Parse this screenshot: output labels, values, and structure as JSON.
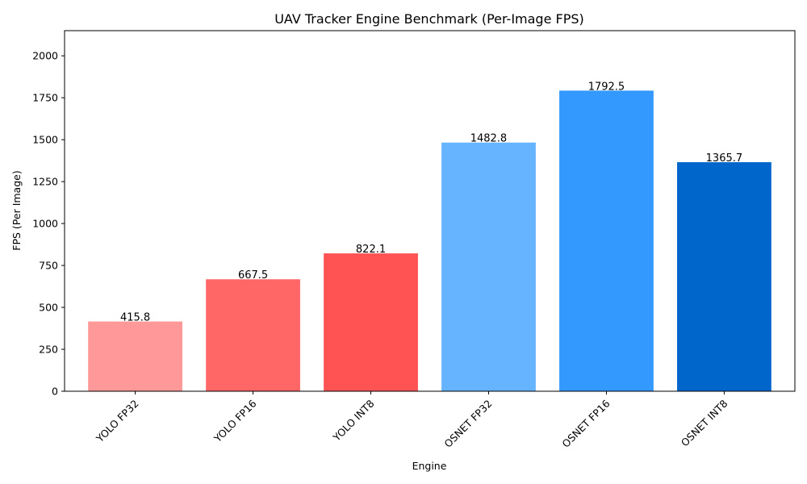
{
  "chart_data": {
    "type": "bar",
    "title": "UAV Tracker Engine Benchmark (Per-Image FPS)",
    "xlabel": "Engine",
    "ylabel": "FPS (Per Image)",
    "categories": [
      "YOLO FP32",
      "YOLO FP16",
      "YOLO INT8",
      "OSNET FP32",
      "OSNET FP16",
      "OSNET INT8"
    ],
    "values": [
      415.8,
      667.5,
      822.1,
      1482.8,
      1792.5,
      1365.7
    ],
    "value_labels": [
      "415.8",
      "667.5",
      "822.1",
      "1482.8",
      "1792.5",
      "1365.7"
    ],
    "colors": [
      "#ff9999",
      "#ff6666",
      "#ff5252",
      "#66b3ff",
      "#3399ff",
      "#0066cc"
    ],
    "ylim": [
      0,
      2150
    ],
    "yticks": [
      0,
      250,
      500,
      750,
      1000,
      1250,
      1500,
      1750,
      2000
    ],
    "grid": false
  }
}
